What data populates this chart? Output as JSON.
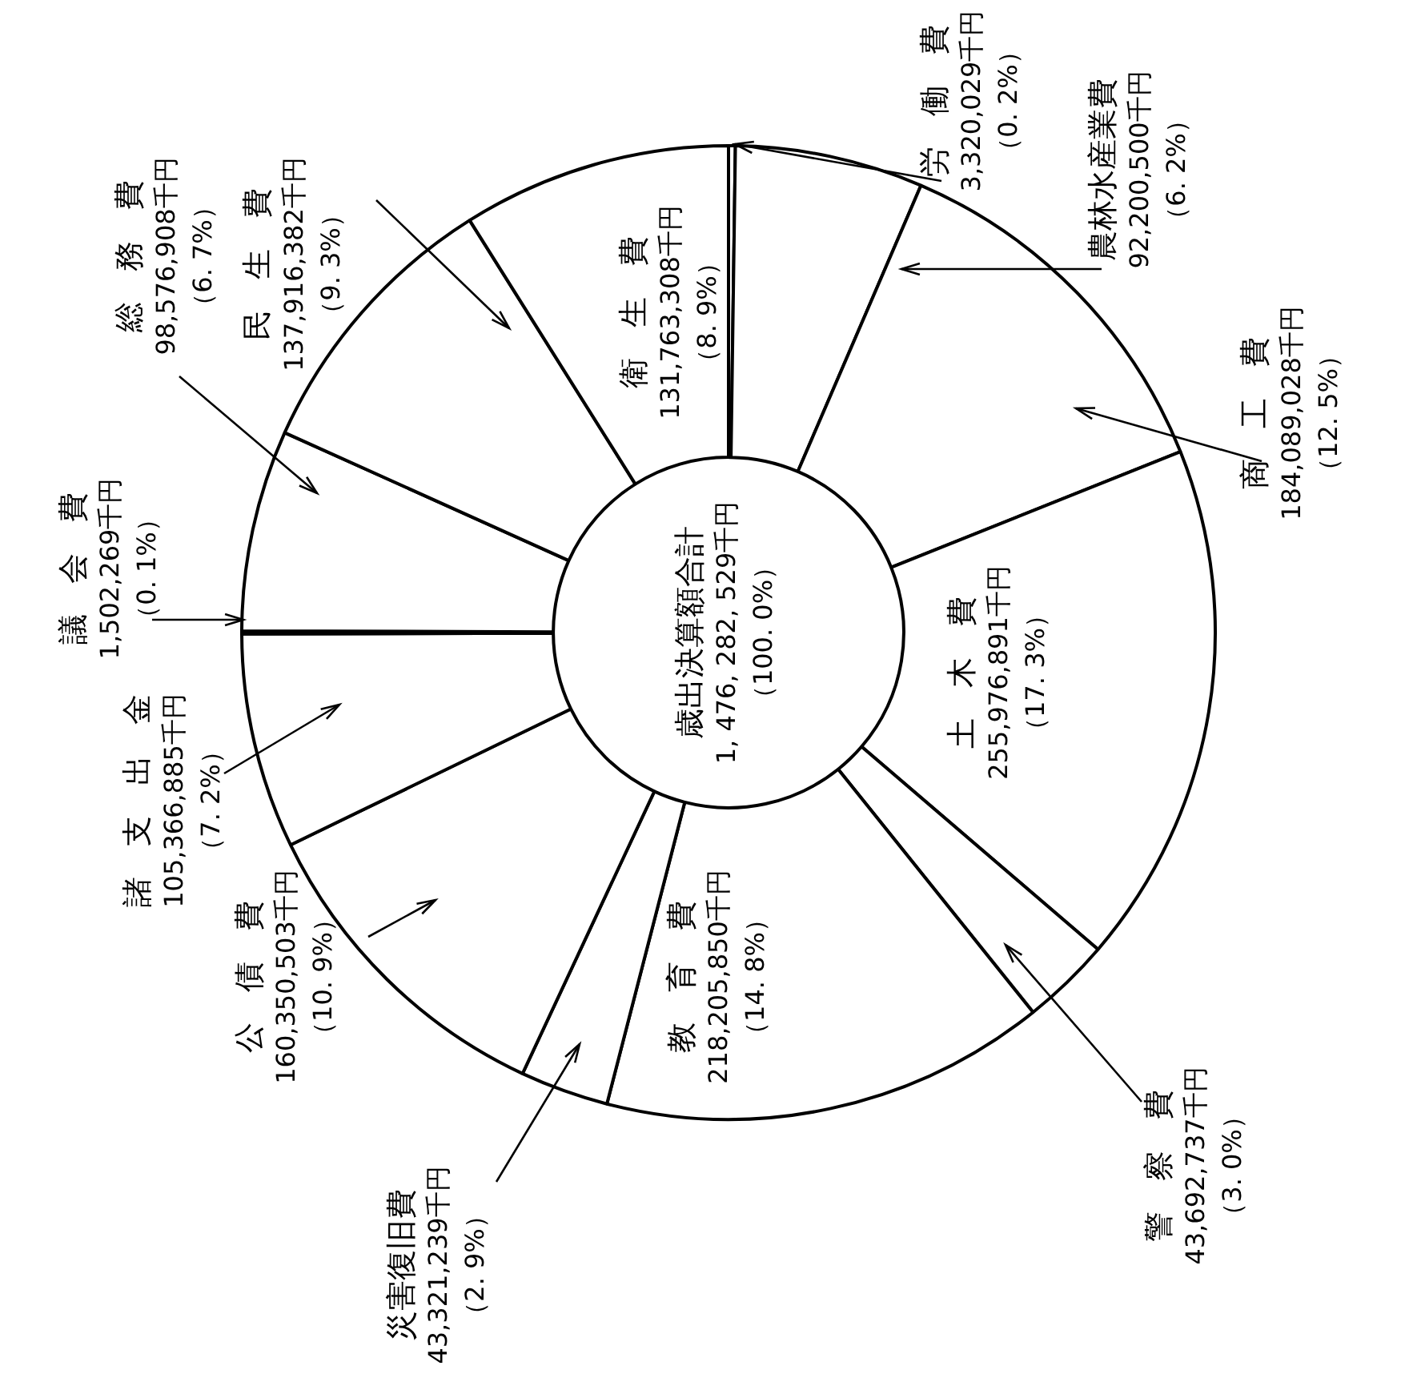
{
  "chart_data": {
    "type": "donut",
    "categories": [
      "労　働　費",
      "農林水産業費",
      "商　工　費",
      "土　木　費",
      "警　察　費",
      "教　育　費",
      "災害復旧費",
      "公　債　費",
      "諸　支　出　金",
      "議　会　費",
      "総　務　費",
      "民　生　費",
      "衛　生　費"
    ],
    "values": [
      3320029,
      92200500,
      184089028,
      255976891,
      43692737,
      218205850,
      43321239,
      160350503,
      105366885,
      1502269,
      98576908,
      137916382,
      131763308
    ],
    "value_labels": [
      "3,320,029千円（0. 2%）",
      "92,200,500千円（6. 2%）",
      "184,089,028千円（12. 5%）",
      "255,976,891千円（17. 3%）",
      "43,692,737千円（3. 0%）",
      "218,205,850千円（14. 8%）",
      "43,321,239千円（2. 9%）",
      "160,350,503千円（10. 9%）",
      "105,366,885千円（7. 2%）",
      "1,502,269千円（0. 1%）",
      "98,576,908千円（6. 7%）",
      "137,916,382千円（9. 3%）",
      "131,763,308千円（8. 9%）"
    ],
    "colors": [
      "#ffffff",
      "#ffffff",
      "#ffffff",
      "#ffffff",
      "#ffffff",
      "#ffffff",
      "#ffffff",
      "#ffffff",
      "#ffffff",
      "#ffffff",
      "#ffffff",
      "#ffffff",
      "#ffffff"
    ],
    "annotations": [
      "歳出決算額合計",
      "1, 476, 282, 529千円（100. 0%）"
    ],
    "legend": false
  }
}
